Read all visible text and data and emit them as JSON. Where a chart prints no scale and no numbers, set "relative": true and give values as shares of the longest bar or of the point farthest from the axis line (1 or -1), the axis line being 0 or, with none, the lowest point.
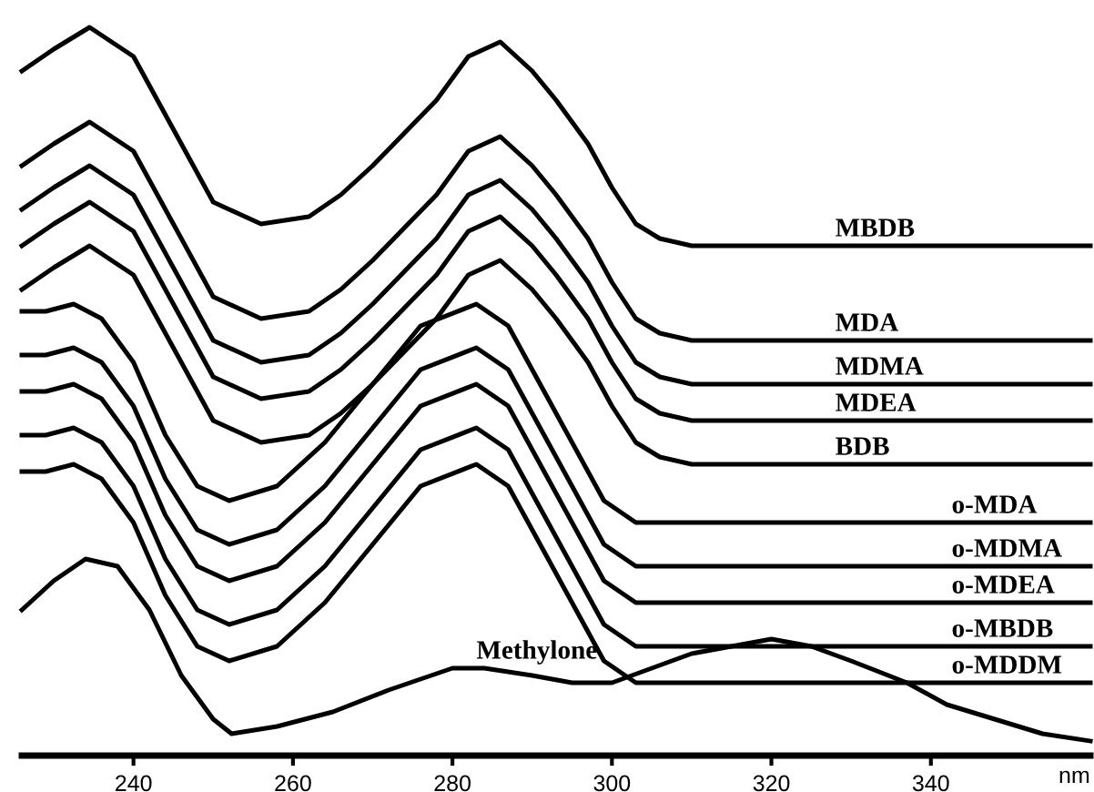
{
  "chart_data": {
    "type": "line",
    "relative": true,
    "xlabel": "nm",
    "xlim": [
      226,
      360
    ],
    "xticks": [
      240,
      260,
      280,
      300,
      320,
      340
    ],
    "grid": false,
    "legend": false,
    "marker": "none",
    "line_style": "solid",
    "series": [
      {
        "name": "MBDB",
        "color": "#000000",
        "x": [
          226,
          230,
          234.5,
          240,
          245,
          250,
          256,
          262,
          266,
          270,
          278,
          282,
          286,
          290,
          293,
          297,
          300,
          303,
          306,
          310,
          360
        ],
        "values": [
          0.94,
          0.97,
          1.0,
          0.96,
          0.86,
          0.76,
          0.73,
          0.74,
          0.77,
          0.81,
          0.9,
          0.96,
          0.98,
          0.94,
          0.9,
          0.84,
          0.78,
          0.73,
          0.71,
          0.7,
          0.7
        ]
      },
      {
        "name": "MDA",
        "color": "#000000",
        "x": [
          226,
          230,
          234.5,
          240,
          245,
          250,
          256,
          262,
          266,
          270,
          278,
          282,
          286,
          290,
          293,
          297,
          300,
          303,
          306,
          310,
          360
        ],
        "values": [
          0.81,
          0.84,
          0.87,
          0.83,
          0.73,
          0.63,
          0.6,
          0.61,
          0.64,
          0.68,
          0.77,
          0.83,
          0.85,
          0.81,
          0.77,
          0.71,
          0.65,
          0.6,
          0.58,
          0.57,
          0.57
        ]
      },
      {
        "name": "MDMA",
        "color": "#000000",
        "x": [
          226,
          230,
          234.5,
          240,
          245,
          250,
          256,
          262,
          266,
          270,
          278,
          282,
          286,
          290,
          293,
          297,
          300,
          303,
          306,
          310,
          360
        ],
        "values": [
          0.75,
          0.78,
          0.81,
          0.77,
          0.67,
          0.57,
          0.54,
          0.55,
          0.58,
          0.62,
          0.71,
          0.77,
          0.79,
          0.75,
          0.71,
          0.65,
          0.59,
          0.54,
          0.52,
          0.51,
          0.51
        ]
      },
      {
        "name": "MDEA",
        "color": "#000000",
        "x": [
          226,
          230,
          234.5,
          240,
          245,
          250,
          256,
          262,
          266,
          270,
          278,
          282,
          286,
          290,
          293,
          297,
          300,
          303,
          306,
          310,
          360
        ],
        "values": [
          0.7,
          0.73,
          0.76,
          0.72,
          0.62,
          0.52,
          0.49,
          0.5,
          0.53,
          0.57,
          0.66,
          0.72,
          0.74,
          0.7,
          0.66,
          0.6,
          0.54,
          0.49,
          0.47,
          0.46,
          0.46
        ]
      },
      {
        "name": "BDB",
        "color": "#000000",
        "x": [
          226,
          230,
          234.5,
          240,
          245,
          250,
          256,
          262,
          266,
          270,
          278,
          282,
          286,
          290,
          293,
          297,
          300,
          303,
          306,
          310,
          360
        ],
        "values": [
          0.64,
          0.67,
          0.7,
          0.66,
          0.56,
          0.46,
          0.43,
          0.44,
          0.47,
          0.51,
          0.6,
          0.66,
          0.68,
          0.64,
          0.6,
          0.54,
          0.48,
          0.43,
          0.41,
          0.4,
          0.4
        ]
      },
      {
        "name": "o-MDA",
        "color": "#000000",
        "x": [
          226,
          229,
          232.5,
          236,
          240,
          244,
          248,
          252,
          258,
          264,
          270,
          276,
          283,
          287,
          291,
          295,
          299,
          303,
          310,
          360
        ],
        "values": [
          0.61,
          0.61,
          0.62,
          0.6,
          0.54,
          0.44,
          0.37,
          0.35,
          0.37,
          0.43,
          0.51,
          0.59,
          0.62,
          0.59,
          0.51,
          0.43,
          0.35,
          0.32,
          0.32,
          0.32
        ]
      },
      {
        "name": "o-MDMA",
        "color": "#000000",
        "x": [
          226,
          229,
          232.5,
          236,
          240,
          244,
          248,
          252,
          258,
          264,
          270,
          276,
          283,
          287,
          291,
          295,
          299,
          303,
          310,
          360
        ],
        "values": [
          0.55,
          0.55,
          0.56,
          0.54,
          0.48,
          0.38,
          0.31,
          0.29,
          0.31,
          0.37,
          0.45,
          0.53,
          0.56,
          0.53,
          0.45,
          0.37,
          0.29,
          0.26,
          0.26,
          0.26
        ]
      },
      {
        "name": "o-MDEA",
        "color": "#000000",
        "x": [
          226,
          229,
          232.5,
          236,
          240,
          244,
          248,
          252,
          258,
          264,
          270,
          276,
          283,
          287,
          291,
          295,
          299,
          303,
          310,
          360
        ],
        "values": [
          0.5,
          0.5,
          0.51,
          0.49,
          0.43,
          0.33,
          0.26,
          0.24,
          0.26,
          0.32,
          0.4,
          0.48,
          0.51,
          0.48,
          0.4,
          0.32,
          0.24,
          0.21,
          0.21,
          0.21
        ]
      },
      {
        "name": "o-MBDB",
        "color": "#000000",
        "x": [
          226,
          229,
          232.5,
          236,
          240,
          244,
          248,
          252,
          258,
          264,
          270,
          276,
          283,
          287,
          291,
          295,
          299,
          303,
          310,
          360
        ],
        "values": [
          0.44,
          0.44,
          0.45,
          0.43,
          0.37,
          0.27,
          0.2,
          0.18,
          0.2,
          0.26,
          0.34,
          0.42,
          0.45,
          0.42,
          0.34,
          0.26,
          0.18,
          0.15,
          0.15,
          0.15
        ]
      },
      {
        "name": "o-MDDM",
        "color": "#000000",
        "x": [
          226,
          229,
          232.5,
          236,
          240,
          244,
          248,
          252,
          258,
          264,
          270,
          276,
          283,
          287,
          291,
          295,
          299,
          303,
          310,
          360
        ],
        "values": [
          0.39,
          0.39,
          0.4,
          0.38,
          0.32,
          0.22,
          0.15,
          0.13,
          0.15,
          0.21,
          0.29,
          0.37,
          0.4,
          0.37,
          0.29,
          0.21,
          0.13,
          0.1,
          0.1,
          0.1
        ]
      },
      {
        "name": "Methylone",
        "color": "#000000",
        "x": [
          226,
          230,
          234,
          238,
          242,
          246,
          250,
          252.3,
          258,
          265,
          272,
          280,
          284,
          290,
          295,
          300,
          305,
          310,
          315,
          320,
          325,
          330,
          337,
          342,
          348,
          354,
          360
        ],
        "values": [
          0.2,
          0.24,
          0.27,
          0.26,
          0.2,
          0.11,
          0.05,
          0.03,
          0.04,
          0.06,
          0.09,
          0.12,
          0.12,
          0.11,
          0.1,
          0.1,
          0.12,
          0.14,
          0.15,
          0.16,
          0.15,
          0.13,
          0.1,
          0.07,
          0.05,
          0.03,
          0.02
        ]
      }
    ]
  }
}
